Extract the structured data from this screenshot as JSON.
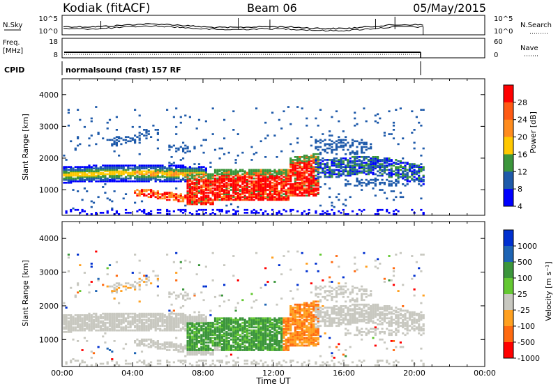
{
  "header": {
    "station": "Kodiak (fitACF)",
    "beam": "Beam 06",
    "date": "05/May/2015"
  },
  "noise_panel": {
    "left_label": "N.Sky",
    "right_label": "N.Search",
    "ticks": [
      "10^5",
      "10^0"
    ]
  },
  "freq_panel": {
    "left_label_1": "Freq.",
    "left_label_2": "[MHz]",
    "left_ticks": [
      "18",
      "8"
    ],
    "right_label": "Nave",
    "right_ticks": [
      "60",
      "0"
    ]
  },
  "cpid": {
    "label": "CPID",
    "value": "normalsound (fast) 157 RF"
  },
  "chart_data": [
    {
      "type": "heatmap",
      "name": "power",
      "ylabel": "Slant Range [km]",
      "ylim": [
        200,
        4500
      ],
      "yticks": [
        "4000",
        "3000",
        "2000",
        "1000"
      ],
      "colorbar": {
        "label": "Power [dB]",
        "ticks": [
          "28",
          "24",
          "20",
          "16",
          "12",
          "8",
          "4"
        ],
        "colors": [
          "#ff0000",
          "#ff5a14",
          "#ff8c1e",
          "#ffc800",
          "#3c963c",
          "#1e5aaa",
          "#0000ff"
        ]
      },
      "features": [
        {
          "desc": "F-region echo band",
          "x": [
            "00:00",
            "08:00"
          ],
          "range_km": [
            1250,
            1750
          ],
          "power_db": [
            8,
            20
          ]
        },
        {
          "desc": "strong scatter",
          "x": [
            "07:00",
            "14:30"
          ],
          "range_km": [
            500,
            1600
          ],
          "power_db": [
            20,
            32
          ]
        },
        {
          "desc": "diffuse band",
          "x": [
            "14:30",
            "20:30"
          ],
          "range_km": [
            1300,
            2400
          ],
          "power_db": [
            4,
            16
          ]
        }
      ]
    },
    {
      "type": "heatmap",
      "name": "velocity",
      "xlabel": "Time UT",
      "xticks": [
        "00:00",
        "04:00",
        "08:00",
        "12:00",
        "16:00",
        "20:00",
        "00:00"
      ],
      "ylabel": "Slant Range [km]",
      "ylim": [
        200,
        4500
      ],
      "yticks": [
        "4000",
        "3000",
        "2000",
        "1000"
      ],
      "colorbar": {
        "label": "Velocity [m s⁻¹]",
        "ticks": [
          "1000",
          "500",
          "100",
          "25",
          "-25",
          "-100",
          "-500",
          "-1000"
        ],
        "colors": [
          "#0030d0",
          "#1e64b4",
          "#3c963c",
          "#64c832",
          "#c8c8c0",
          "#ffa020",
          "#ff6a10",
          "#ff0000"
        ]
      },
      "features": [
        {
          "desc": "ground scatter band",
          "x": [
            "00:00",
            "08:00"
          ],
          "range_km": [
            1300,
            1850
          ],
          "velocity": [
            -25,
            25
          ]
        },
        {
          "desc": "positive velocity region",
          "x": [
            "07:30",
            "12:30"
          ],
          "range_km": [
            600,
            1500
          ],
          "velocity": [
            100,
            500
          ]
        },
        {
          "desc": "negative velocity region",
          "x": [
            "12:00",
            "14:30"
          ],
          "range_km": [
            700,
            1600
          ],
          "velocity": [
            -500,
            -100
          ]
        }
      ]
    }
  ]
}
